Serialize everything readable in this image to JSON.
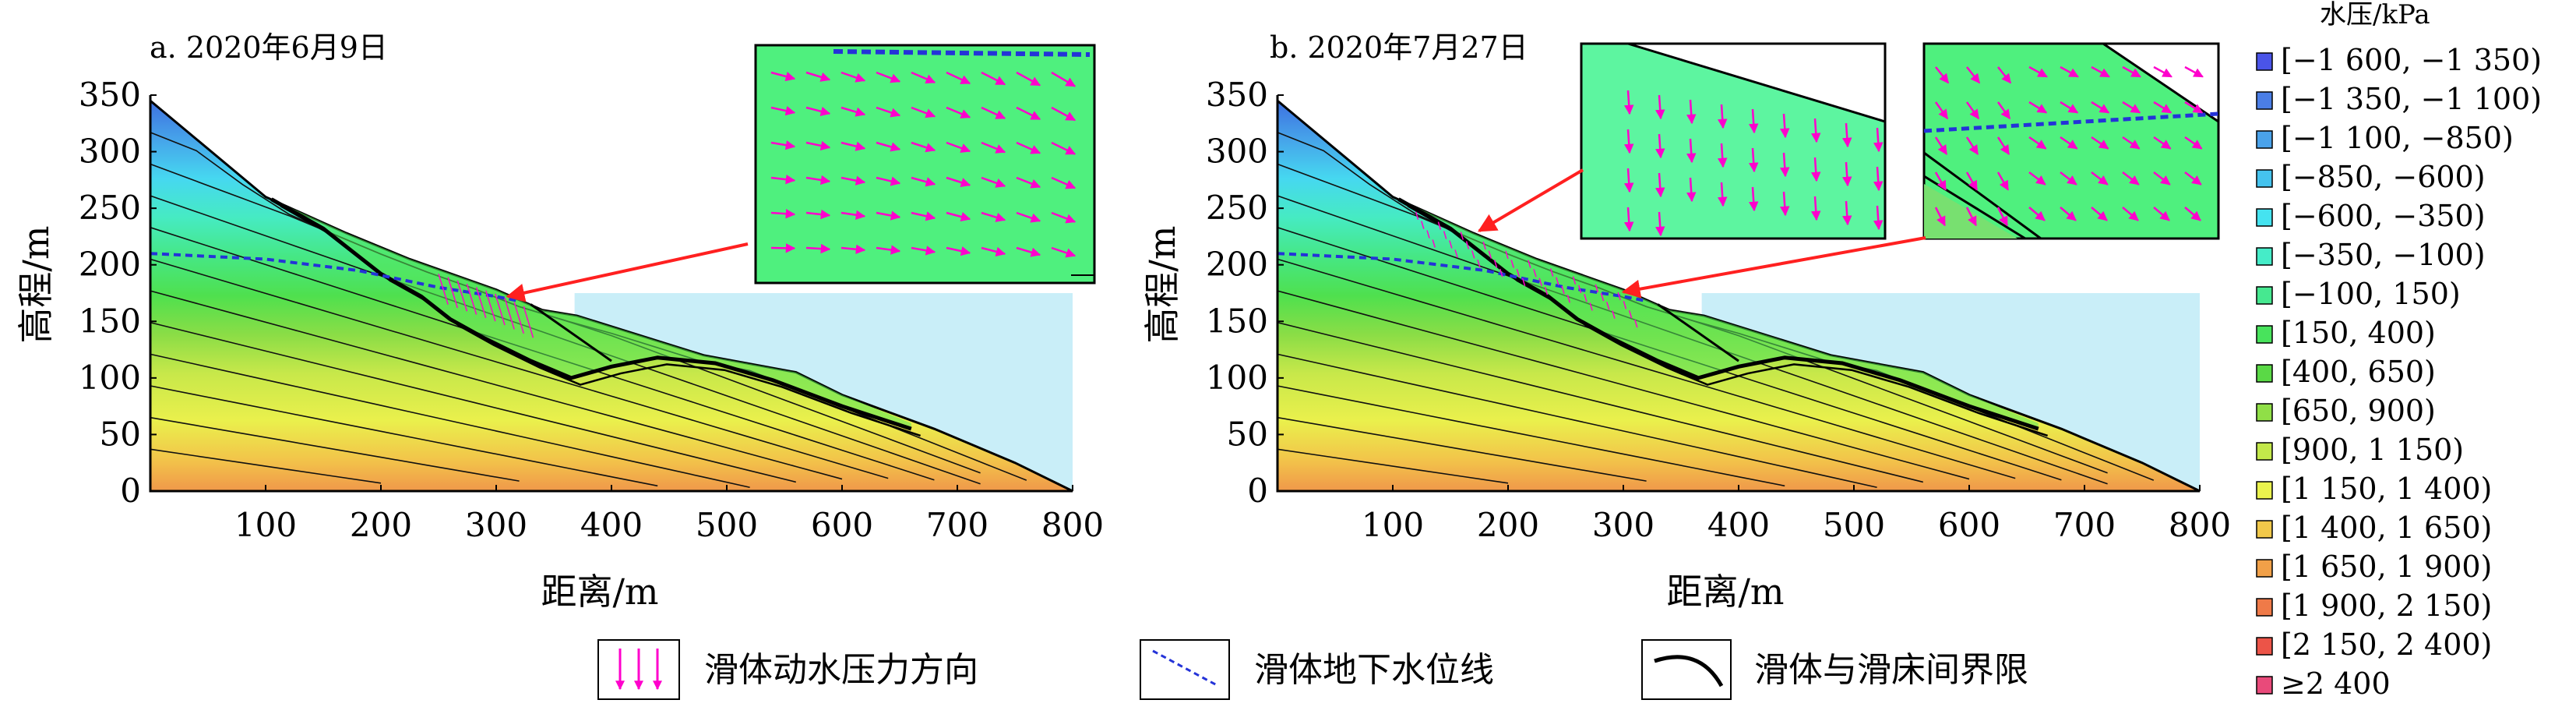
{
  "chart_data": [
    {
      "type": "area",
      "panel_label": "a. 2020年6月9日",
      "xlabel": "距离/m",
      "ylabel": "高程/m",
      "xlim": [
        0,
        800
      ],
      "ylim": [
        0,
        350
      ],
      "x_ticks": [
        "100",
        "200",
        "300",
        "400",
        "500",
        "600",
        "700",
        "800"
      ],
      "y_ticks": [
        "0",
        "50",
        "100",
        "150",
        "200",
        "250",
        "300",
        "350"
      ],
      "water_level": 175,
      "surface": [
        [
          0,
          345
        ],
        [
          100,
          260
        ],
        [
          170,
          228
        ],
        [
          225,
          205
        ],
        [
          300,
          178
        ],
        [
          340,
          160
        ],
        [
          370,
          155
        ],
        [
          480,
          120
        ],
        [
          560,
          105
        ],
        [
          600,
          85
        ],
        [
          680,
          55
        ],
        [
          750,
          25
        ],
        [
          800,
          0
        ]
      ],
      "groundwater_line": [
        [
          0,
          210
        ],
        [
          100,
          205
        ],
        [
          180,
          195
        ],
        [
          250,
          180
        ],
        [
          300,
          172
        ],
        [
          320,
          168
        ]
      ],
      "slide_boundary": [
        [
          105,
          258
        ],
        [
          150,
          232
        ],
        [
          175,
          212
        ],
        [
          200,
          192
        ],
        [
          235,
          172
        ],
        [
          260,
          152
        ],
        [
          290,
          135
        ],
        [
          330,
          115
        ],
        [
          365,
          100
        ],
        [
          400,
          110
        ],
        [
          440,
          118
        ],
        [
          490,
          113
        ],
        [
          540,
          98
        ],
        [
          600,
          75
        ],
        [
          660,
          55
        ]
      ],
      "inset_vectors": "down-right",
      "inset_count": 1
    },
    {
      "type": "area",
      "panel_label": "b. 2020年7月27日",
      "xlabel": "距离/m",
      "ylabel": "高程/m",
      "xlim": [
        0,
        800
      ],
      "ylim": [
        0,
        350
      ],
      "x_ticks": [
        "100",
        "200",
        "300",
        "400",
        "500",
        "600",
        "700",
        "800"
      ],
      "y_ticks": [
        "0",
        "50",
        "100",
        "150",
        "200",
        "250",
        "300",
        "350"
      ],
      "water_level": 175,
      "surface": [
        [
          0,
          345
        ],
        [
          100,
          260
        ],
        [
          170,
          228
        ],
        [
          225,
          205
        ],
        [
          300,
          178
        ],
        [
          340,
          160
        ],
        [
          370,
          155
        ],
        [
          480,
          120
        ],
        [
          560,
          105
        ],
        [
          600,
          85
        ],
        [
          680,
          55
        ],
        [
          750,
          25
        ],
        [
          800,
          0
        ]
      ],
      "groundwater_line": [
        [
          0,
          210
        ],
        [
          100,
          205
        ],
        [
          180,
          195
        ],
        [
          250,
          180
        ],
        [
          300,
          172
        ],
        [
          320,
          168
        ]
      ],
      "slide_boundary": [
        [
          105,
          258
        ],
        [
          150,
          232
        ],
        [
          175,
          212
        ],
        [
          200,
          192
        ],
        [
          235,
          172
        ],
        [
          260,
          152
        ],
        [
          290,
          135
        ],
        [
          330,
          115
        ],
        [
          365,
          100
        ],
        [
          400,
          110
        ],
        [
          440,
          118
        ],
        [
          490,
          113
        ],
        [
          540,
          98
        ],
        [
          600,
          75
        ],
        [
          660,
          55
        ]
      ],
      "inset_vectors": "downward",
      "inset_count": 2
    }
  ],
  "legend": {
    "title": "水压/kPa",
    "items": [
      {
        "label": "[−1 600, −1 350)",
        "color": "#4a54e8"
      },
      {
        "label": "[−1 350, −1 100)",
        "color": "#4b7ee6"
      },
      {
        "label": "[−1 100, −850)",
        "color": "#4aa2ea"
      },
      {
        "label": "[−850, −600)",
        "color": "#45c3ee"
      },
      {
        "label": "[−600, −350)",
        "color": "#45e3f0"
      },
      {
        "label": "[−350, −100)",
        "color": "#45ecc8"
      },
      {
        "label": "[−100, 150)",
        "color": "#46e890"
      },
      {
        "label": "[150, 400)",
        "color": "#48e35c"
      },
      {
        "label": "[400, 650)",
        "color": "#5ad946"
      },
      {
        "label": "[650, 900)",
        "color": "#90df47"
      },
      {
        "label": "[900, 1 150)",
        "color": "#c3e84a"
      },
      {
        "label": "[1 150, 1 400)",
        "color": "#eaf24d"
      },
      {
        "label": "[1 400, 1 650)",
        "color": "#f1c84a"
      },
      {
        "label": "[1 650, 1 900)",
        "color": "#f1a048"
      },
      {
        "label": "[1 900, 2 150)",
        "color": "#ef7a48"
      },
      {
        "label": "[2 150, 2 400)",
        "color": "#ec5448"
      },
      {
        "label": "≥2 400",
        "color": "#e94a7a"
      }
    ]
  },
  "bottom_legend": {
    "pressure_direction": "滑体动水压力方向",
    "groundwater_line": "滑体地下水位线",
    "slide_boundary": "滑体与滑床间界限"
  },
  "colors": {
    "reservoir": "#c9eef8",
    "arrow": "#ff00cc",
    "groundwater": "#2433d8",
    "callout": "#ff2020"
  }
}
